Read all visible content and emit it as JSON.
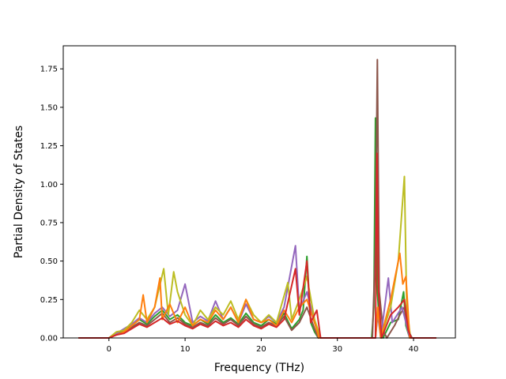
{
  "chart_data": {
    "type": "line",
    "title": "",
    "xlabel": "Frequency (THz)",
    "ylabel": "Partial Density of States",
    "xlim": [
      -6.0,
      45.5
    ],
    "ylim": [
      0,
      1.9
    ],
    "xticks": [
      0,
      10,
      20,
      30,
      40
    ],
    "yticks": [
      0.0,
      0.25,
      0.5,
      0.75,
      1.0,
      1.25,
      1.5,
      1.75
    ],
    "ytick_labels": [
      "0.00",
      "0.25",
      "0.50",
      "0.75",
      "1.00",
      "1.25",
      "1.50",
      "1.75"
    ],
    "grid": false,
    "legend": "none",
    "series": [
      {
        "color": "#2ca02c",
        "points": [
          [
            -4,
            0
          ],
          [
            0,
            0
          ],
          [
            1,
            0.03
          ],
          [
            2,
            0.05
          ],
          [
            3,
            0.08
          ],
          [
            4,
            0.12
          ],
          [
            5,
            0.09
          ],
          [
            6,
            0.14
          ],
          [
            7,
            0.18
          ],
          [
            8,
            0.12
          ],
          [
            9,
            0.15
          ],
          [
            10,
            0.1
          ],
          [
            11,
            0.08
          ],
          [
            12,
            0.12
          ],
          [
            13,
            0.09
          ],
          [
            14,
            0.15
          ],
          [
            15,
            0.1
          ],
          [
            16,
            0.13
          ],
          [
            17,
            0.09
          ],
          [
            18,
            0.16
          ],
          [
            19,
            0.1
          ],
          [
            20,
            0.08
          ],
          [
            21,
            0.12
          ],
          [
            22,
            0.09
          ],
          [
            23,
            0.16
          ],
          [
            24,
            0.06
          ],
          [
            25,
            0.12
          ],
          [
            25.5,
            0.18
          ],
          [
            26,
            0.53
          ],
          [
            26.5,
            0.1
          ],
          [
            27,
            0.04
          ],
          [
            27.5,
            0
          ],
          [
            34.5,
            0
          ],
          [
            34.8,
            0.2
          ],
          [
            35.0,
            1.43
          ],
          [
            35.2,
            0.35
          ],
          [
            35.5,
            0.1
          ],
          [
            36,
            0
          ],
          [
            37,
            0.1
          ],
          [
            38,
            0.12
          ],
          [
            38.7,
            0.3
          ],
          [
            39,
            0.08
          ],
          [
            39.5,
            0
          ],
          [
            43,
            0
          ]
        ]
      },
      {
        "color": "#8c564b",
        "points": [
          [
            -4,
            0
          ],
          [
            0,
            0
          ],
          [
            1,
            0.02
          ],
          [
            2,
            0.04
          ],
          [
            3,
            0.07
          ],
          [
            4,
            0.1
          ],
          [
            5,
            0.08
          ],
          [
            6,
            0.12
          ],
          [
            7,
            0.16
          ],
          [
            8,
            0.1
          ],
          [
            9,
            0.13
          ],
          [
            10,
            0.09
          ],
          [
            11,
            0.07
          ],
          [
            12,
            0.1
          ],
          [
            13,
            0.08
          ],
          [
            14,
            0.13
          ],
          [
            15,
            0.09
          ],
          [
            16,
            0.12
          ],
          [
            17,
            0.08
          ],
          [
            18,
            0.14
          ],
          [
            19,
            0.09
          ],
          [
            20,
            0.07
          ],
          [
            21,
            0.1
          ],
          [
            22,
            0.08
          ],
          [
            23,
            0.14
          ],
          [
            24,
            0.05
          ],
          [
            25,
            0.1
          ],
          [
            26,
            0.2
          ],
          [
            27,
            0.06
          ],
          [
            27.5,
            0
          ],
          [
            34.6,
            0
          ],
          [
            35.0,
            0.6
          ],
          [
            35.25,
            1.81
          ],
          [
            35.5,
            0.3
          ],
          [
            36,
            0.05
          ],
          [
            36.5,
            0
          ],
          [
            37.5,
            0.08
          ],
          [
            38.2,
            0.15
          ],
          [
            38.8,
            0.2
          ],
          [
            39.3,
            0.05
          ],
          [
            39.8,
            0
          ],
          [
            43,
            0
          ]
        ]
      },
      {
        "color": "#9467bd",
        "points": [
          [
            -4,
            0
          ],
          [
            0,
            0
          ],
          [
            1,
            0.03
          ],
          [
            2,
            0.06
          ],
          [
            3,
            0.09
          ],
          [
            4,
            0.13
          ],
          [
            5,
            0.1
          ],
          [
            6,
            0.16
          ],
          [
            7,
            0.2
          ],
          [
            8,
            0.14
          ],
          [
            9,
            0.18
          ],
          [
            10,
            0.35
          ],
          [
            11,
            0.1
          ],
          [
            12,
            0.14
          ],
          [
            13,
            0.11
          ],
          [
            14,
            0.24
          ],
          [
            15,
            0.12
          ],
          [
            16,
            0.2
          ],
          [
            17,
            0.1
          ],
          [
            18,
            0.22
          ],
          [
            19,
            0.12
          ],
          [
            20,
            0.1
          ],
          [
            21,
            0.14
          ],
          [
            22,
            0.1
          ],
          [
            23,
            0.2
          ],
          [
            24.5,
            0.6
          ],
          [
            25,
            0.18
          ],
          [
            26,
            0.3
          ],
          [
            27,
            0.1
          ],
          [
            27.8,
            0
          ],
          [
            35,
            0
          ],
          [
            35.3,
            0.15
          ],
          [
            35.7,
            0
          ],
          [
            36.7,
            0.39
          ],
          [
            37.2,
            0.1
          ],
          [
            38.5,
            0.2
          ],
          [
            39,
            0.1
          ],
          [
            39.5,
            0
          ],
          [
            43,
            0
          ]
        ]
      },
      {
        "color": "#bcbd22",
        "points": [
          [
            -4,
            0
          ],
          [
            0,
            0
          ],
          [
            1,
            0.04
          ],
          [
            2,
            0.05
          ],
          [
            3,
            0.1
          ],
          [
            4,
            0.18
          ],
          [
            5,
            0.12
          ],
          [
            6,
            0.2
          ],
          [
            7.2,
            0.45
          ],
          [
            7.8,
            0.15
          ],
          [
            8.5,
            0.43
          ],
          [
            9,
            0.3
          ],
          [
            10,
            0.15
          ],
          [
            11,
            0.08
          ],
          [
            12,
            0.18
          ],
          [
            13,
            0.12
          ],
          [
            14,
            0.2
          ],
          [
            15,
            0.15
          ],
          [
            16,
            0.24
          ],
          [
            17,
            0.12
          ],
          [
            18,
            0.25
          ],
          [
            19,
            0.15
          ],
          [
            20,
            0.1
          ],
          [
            21,
            0.15
          ],
          [
            22,
            0.1
          ],
          [
            23.5,
            0.36
          ],
          [
            24,
            0.12
          ],
          [
            25,
            0.25
          ],
          [
            26,
            0.4
          ],
          [
            27,
            0.12
          ],
          [
            27.8,
            0
          ],
          [
            35,
            0
          ],
          [
            35.3,
            0.2
          ],
          [
            35.7,
            0
          ],
          [
            37,
            0.2
          ],
          [
            38,
            0.5
          ],
          [
            38.8,
            1.05
          ],
          [
            39.1,
            0.2
          ],
          [
            39.6,
            0
          ],
          [
            43,
            0
          ]
        ]
      },
      {
        "color": "#ff7f0e",
        "points": [
          [
            -4,
            0
          ],
          [
            0,
            0
          ],
          [
            1,
            0.02
          ],
          [
            2,
            0.04
          ],
          [
            3,
            0.08
          ],
          [
            4,
            0.12
          ],
          [
            4.5,
            0.28
          ],
          [
            5,
            0.1
          ],
          [
            6,
            0.2
          ],
          [
            6.7,
            0.39
          ],
          [
            7,
            0.12
          ],
          [
            8,
            0.22
          ],
          [
            9,
            0.1
          ],
          [
            10,
            0.2
          ],
          [
            11,
            0.08
          ],
          [
            12,
            0.12
          ],
          [
            13,
            0.1
          ],
          [
            14,
            0.18
          ],
          [
            15,
            0.12
          ],
          [
            16,
            0.2
          ],
          [
            17,
            0.1
          ],
          [
            18,
            0.25
          ],
          [
            19,
            0.12
          ],
          [
            20,
            0.1
          ],
          [
            21,
            0.12
          ],
          [
            22,
            0.08
          ],
          [
            23,
            0.18
          ],
          [
            24,
            0.1
          ],
          [
            25,
            0.2
          ],
          [
            26,
            0.25
          ],
          [
            27,
            0.1
          ],
          [
            27.6,
            0
          ],
          [
            35,
            0
          ],
          [
            35.3,
            0.2
          ],
          [
            35.7,
            0
          ],
          [
            37,
            0.25
          ],
          [
            38.2,
            0.55
          ],
          [
            38.6,
            0.35
          ],
          [
            39,
            0.4
          ],
          [
            39.5,
            0
          ],
          [
            43,
            0
          ]
        ]
      },
      {
        "color": "#d62728",
        "points": [
          [
            -4,
            0
          ],
          [
            0,
            0
          ],
          [
            1,
            0.02
          ],
          [
            2,
            0.03
          ],
          [
            3,
            0.06
          ],
          [
            4,
            0.09
          ],
          [
            5,
            0.07
          ],
          [
            6,
            0.1
          ],
          [
            7,
            0.13
          ],
          [
            8,
            0.09
          ],
          [
            9,
            0.11
          ],
          [
            10,
            0.08
          ],
          [
            11,
            0.06
          ],
          [
            12,
            0.09
          ],
          [
            13,
            0.07
          ],
          [
            14,
            0.11
          ],
          [
            15,
            0.08
          ],
          [
            16,
            0.1
          ],
          [
            17,
            0.07
          ],
          [
            18,
            0.12
          ],
          [
            19,
            0.08
          ],
          [
            20,
            0.06
          ],
          [
            21,
            0.09
          ],
          [
            22,
            0.07
          ],
          [
            23,
            0.12
          ],
          [
            24.5,
            0.45
          ],
          [
            25,
            0.15
          ],
          [
            26,
            0.5
          ],
          [
            26.5,
            0.1
          ],
          [
            27.3,
            0.18
          ],
          [
            27.8,
            0
          ],
          [
            35,
            0
          ],
          [
            35.2,
            1.2
          ],
          [
            35.4,
            0.3
          ],
          [
            35.8,
            0
          ],
          [
            37,
            0.15
          ],
          [
            38,
            0.2
          ],
          [
            38.8,
            0.25
          ],
          [
            39.3,
            0.05
          ],
          [
            39.7,
            0
          ],
          [
            43,
            0
          ]
        ]
      }
    ]
  }
}
